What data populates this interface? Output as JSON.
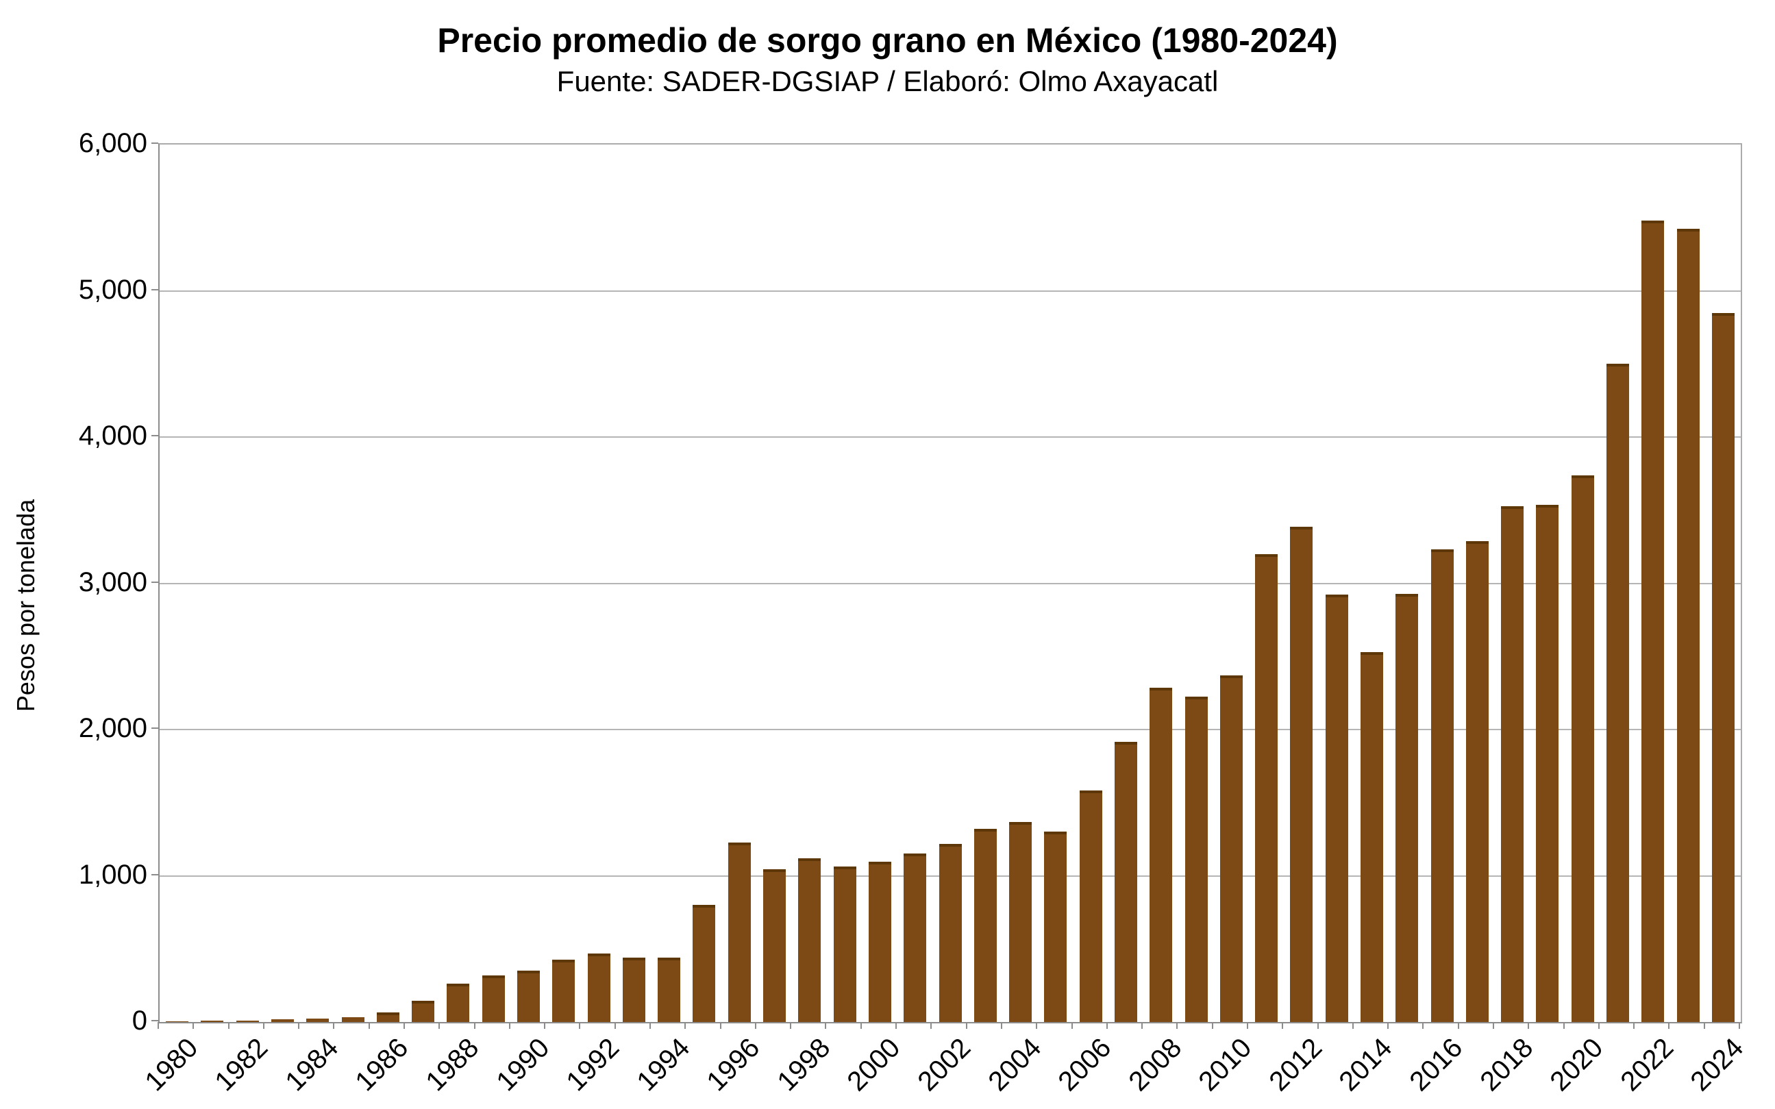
{
  "header": {
    "title": "Precio promedio de sorgo grano en México (1980-2024)",
    "subtitle": "Fuente: SADER-DGSIAP / Elaboró: Olmo Axayacatl"
  },
  "chart_data": {
    "type": "bar",
    "title": "Precio promedio de sorgo grano en México (1980-2024)",
    "subtitle": "Fuente: SADER-DGSIAP / Elaboró: Olmo Axayacatl",
    "ylabel": "Pesos por tonelada",
    "xlabel": "",
    "ylim": [
      0,
      6000
    ],
    "grid": "horizontal",
    "legend_position": "none",
    "ytick_labels": [
      "0",
      "1,000",
      "2,000",
      "3,000",
      "4,000",
      "5,000",
      "6,000"
    ],
    "ytick_values": [
      0,
      1000,
      2000,
      3000,
      4000,
      5000,
      6000
    ],
    "xtick_labels": [
      "1980",
      "1982",
      "1984",
      "1986",
      "1988",
      "1990",
      "1992",
      "1994",
      "1996",
      "1998",
      "2000",
      "2002",
      "2004",
      "2006",
      "2008",
      "2010",
      "2012",
      "2014",
      "2016",
      "2018",
      "2020",
      "2022",
      "2024"
    ],
    "categories": [
      1980,
      1981,
      1982,
      1983,
      1984,
      1985,
      1986,
      1987,
      1988,
      1989,
      1990,
      1991,
      1992,
      1993,
      1994,
      1995,
      1996,
      1997,
      1998,
      1999,
      2000,
      2001,
      2002,
      2003,
      2004,
      2005,
      2006,
      2007,
      2008,
      2009,
      2010,
      2011,
      2012,
      2013,
      2014,
      2015,
      2016,
      2017,
      2018,
      2019,
      2020,
      2021,
      2022,
      2023,
      2024
    ],
    "values": [
      5,
      8,
      11,
      17,
      25,
      32,
      66,
      146,
      262,
      317,
      349,
      428,
      468,
      439,
      442,
      800,
      1225,
      1044,
      1120,
      1062,
      1095,
      1150,
      1220,
      1320,
      1367,
      1303,
      1582,
      1915,
      2288,
      2225,
      2368,
      3198,
      3385,
      2925,
      2528,
      2928,
      3230,
      3288,
      3525,
      3535,
      3740,
      4500,
      5480,
      5423,
      4849
    ],
    "colors": {
      "bar_fill": "#7d4a15",
      "bar_top_edge": "#5e3709",
      "gridline": "#b5b5b5",
      "axis": "#8c8c8c",
      "frame": "#ababab",
      "text": "#000000",
      "background": "#ffffff"
    }
  }
}
